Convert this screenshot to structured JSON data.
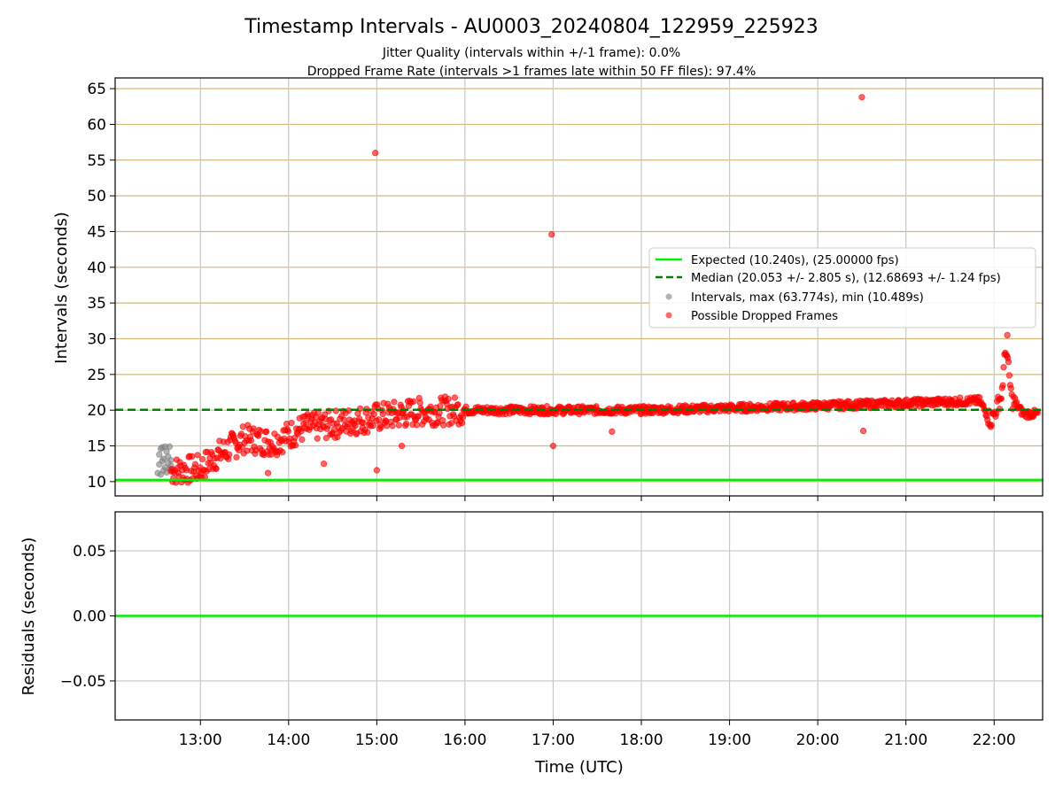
{
  "figure": {
    "title": "Timestamp Intervals - AU0003_20240804_122959_225923",
    "subtitle_1": "Jitter Quality (intervals within +/-1 frame): 0.0%",
    "subtitle_2": "Dropped Frame Rate (intervals >1 frames late within 50 FF files): 97.4%",
    "x_axis_label": "Time (UTC)",
    "colors": {
      "expected": "#00ee00",
      "median": "#008000",
      "intervals": "#808080",
      "dropped": "#ff0000",
      "grid_h": "#d4b97a",
      "grid_v": "#c8c8c8"
    }
  },
  "chart_data": [
    {
      "type": "scatter",
      "panel": "top",
      "ylabel": "Intervals (seconds)",
      "ylim": [
        8.0,
        66.5
      ],
      "yticks": [
        10,
        15,
        20,
        25,
        30,
        35,
        40,
        45,
        50,
        55,
        60,
        65
      ],
      "xlim": [
        "12:00",
        "22:30"
      ],
      "xticks": [
        "13:00",
        "14:00",
        "15:00",
        "16:00",
        "17:00",
        "18:00",
        "19:00",
        "20:00",
        "21:00",
        "22:00"
      ],
      "grid": true,
      "legend_position": "center-right",
      "legend": [
        "Expected (10.240s), (25.00000 fps)",
        "Median (20.053 +/- 2.805 s), (12.68693 +/- 1.24 fps)",
        "Intervals, max (63.774s), min (10.489s)",
        "Possible Dropped Frames"
      ],
      "lines": [
        {
          "name": "Expected (10.240s), (25.00000 fps)",
          "y": 10.24,
          "style": "solid"
        },
        {
          "name": "Median (20.053 +/- 2.805 s), (12.68693 +/- 1.24 fps)",
          "y": 20.053,
          "style": "dashed"
        }
      ],
      "series": [
        {
          "name": "Intervals, max (63.774s), min (10.489s)",
          "color": "#808080",
          "description": "cluster of normal intervals between 12:30 and 12:40",
          "points": [
            [
              "12:31",
              11.2
            ],
            [
              "12:32",
              12.4
            ],
            [
              "12:32",
              13.8
            ],
            [
              "12:33",
              14.6
            ],
            [
              "12:33",
              11.0
            ],
            [
              "12:34",
              12.9
            ],
            [
              "12:34",
              14.8
            ],
            [
              "12:35",
              11.6
            ],
            [
              "12:35",
              13.2
            ],
            [
              "12:36",
              14.9
            ],
            [
              "12:36",
              12.0
            ],
            [
              "12:37",
              11.3
            ],
            [
              "12:37",
              14.2
            ],
            [
              "12:38",
              12.6
            ],
            [
              "12:38",
              13.5
            ],
            [
              "12:39",
              11.8
            ],
            [
              "12:39",
              14.9
            ],
            [
              "12:40",
              12.2
            ],
            [
              "12:40",
              13.0
            ],
            [
              "12:41",
              11.4
            ]
          ]
        },
        {
          "name": "Possible Dropped Frames",
          "color": "#ff0000",
          "description": "dense band of late intervals, rising from ~11 s at 12:40 to ~20 s by 15:30, ~20-21 s to 21:50, spike to ~30 s near 22:08, then ~19.5 s to 22:30",
          "trend": [
            [
              "12:40",
              11.5
            ],
            [
              "13:00",
              11.8
            ],
            [
              "13:10",
              13.5
            ],
            [
              "13:30",
              16.0
            ],
            [
              "13:50",
              15.5
            ],
            [
              "14:10",
              17.5
            ],
            [
              "14:30",
              18.0
            ],
            [
              "15:00",
              19.0
            ],
            [
              "15:30",
              19.8
            ],
            [
              "16:00",
              20.0
            ],
            [
              "17:00",
              20.0
            ],
            [
              "18:00",
              20.0
            ],
            [
              "19:00",
              20.3
            ],
            [
              "20:00",
              20.6
            ],
            [
              "21:00",
              21.0
            ],
            [
              "21:50",
              21.3
            ],
            [
              "21:58",
              18.5
            ],
            [
              "22:05",
              22.0
            ],
            [
              "22:08",
              29.0
            ],
            [
              "22:12",
              21.5
            ],
            [
              "22:20",
              19.5
            ],
            [
              "22:30",
              19.5
            ]
          ],
          "outliers": [
            [
              "14:59",
              56.0
            ],
            [
              "15:00",
              11.6
            ],
            [
              "16:59",
              44.6
            ],
            [
              "17:00",
              15.0
            ],
            [
              "20:30",
              63.8
            ],
            [
              "20:31",
              17.1
            ],
            [
              "13:46",
              11.2
            ],
            [
              "14:24",
              12.5
            ],
            [
              "15:17",
              15.0
            ],
            [
              "17:40",
              17.0
            ],
            [
              "22:09",
              30.5
            ]
          ]
        }
      ]
    },
    {
      "type": "line",
      "panel": "bottom",
      "ylabel": "Residuals (seconds)",
      "ylim": [
        -0.08,
        0.08
      ],
      "yticks": [
        0.05,
        0.0,
        -0.05
      ],
      "ytick_labels": [
        "0.05",
        "0.00",
        "−0.05"
      ],
      "xlim": [
        "12:00",
        "22:30"
      ],
      "xticks": [
        "13:00",
        "14:00",
        "15:00",
        "16:00",
        "17:00",
        "18:00",
        "19:00",
        "20:00",
        "21:00",
        "22:00"
      ],
      "grid": true,
      "series": [
        {
          "name": "",
          "y": 0.0,
          "color": "#00ee00"
        }
      ]
    }
  ]
}
